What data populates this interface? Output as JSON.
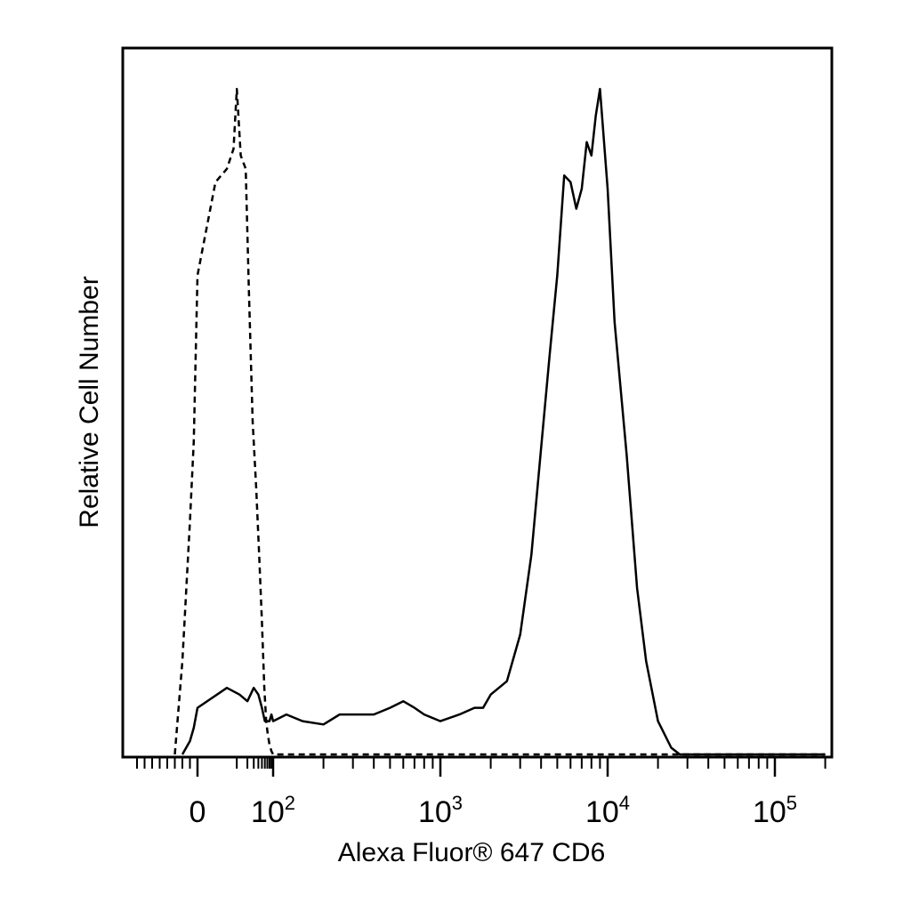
{
  "chart_data": {
    "type": "line",
    "title": "",
    "xlabel": "Alexa Fluor® 647 CD6",
    "ylabel": "Relative Cell Number",
    "x_scale": "biexponential",
    "x_range": [
      -90,
      250000
    ],
    "y_range": [
      0,
      100
    ],
    "grid": false,
    "legend": "none",
    "x_ticks": [
      {
        "value": 0,
        "base": "0",
        "exp": ""
      },
      {
        "value": 100,
        "base": "10",
        "exp": "2"
      },
      {
        "value": 1000,
        "base": "10",
        "exp": "3"
      },
      {
        "value": 10000,
        "base": "10",
        "exp": "4"
      },
      {
        "value": 100000,
        "base": "10",
        "exp": "5"
      }
    ],
    "series": [
      {
        "style": "dashed",
        "color": "#000000",
        "x": [
          -30,
          -20,
          -10,
          -5,
          -2,
          0,
          2,
          5,
          8,
          10,
          13,
          18,
          22,
          28,
          35,
          42,
          50,
          58,
          65,
          72,
          80,
          90,
          100,
          200,
          1000,
          10000,
          30000,
          200000
        ],
        "y": [
          0,
          14,
          35,
          47,
          62,
          72,
          86,
          88,
          91,
          100,
          90,
          88,
          70,
          50,
          40,
          30,
          20,
          10,
          5,
          3,
          1.5,
          0.5,
          0,
          0,
          0,
          0,
          0,
          0
        ]
      },
      {
        "style": "solid",
        "color": "#000000",
        "x": [
          -20,
          -10,
          -5,
          0,
          5,
          12,
          20,
          30,
          40,
          50,
          60,
          70,
          80,
          90,
          100,
          120,
          150,
          200,
          250,
          300,
          400,
          500,
          600,
          700,
          800,
          1000,
          1300,
          1600,
          1800,
          2000,
          2500,
          3000,
          3500,
          4000,
          4500,
          5000,
          5500,
          6000,
          6500,
          7000,
          7500,
          8000,
          8500,
          9000,
          10000,
          11000,
          13000,
          15000,
          17000,
          20000,
          24000,
          27000,
          30000,
          35000,
          40000,
          50000,
          100000,
          200000
        ],
        "y": [
          0,
          2,
          4,
          7,
          10,
          9,
          8,
          10,
          9,
          7,
          5,
          5,
          5,
          6,
          5,
          6,
          5,
          4.5,
          6,
          6,
          6,
          7,
          8,
          7,
          6,
          5,
          6,
          7,
          7,
          9,
          11,
          18,
          30,
          46,
          60,
          72,
          87,
          86,
          82,
          85,
          92,
          90,
          96,
          100,
          85,
          65,
          45,
          25,
          14,
          5,
          1,
          0,
          0,
          0,
          0,
          0,
          0,
          0
        ]
      }
    ]
  }
}
